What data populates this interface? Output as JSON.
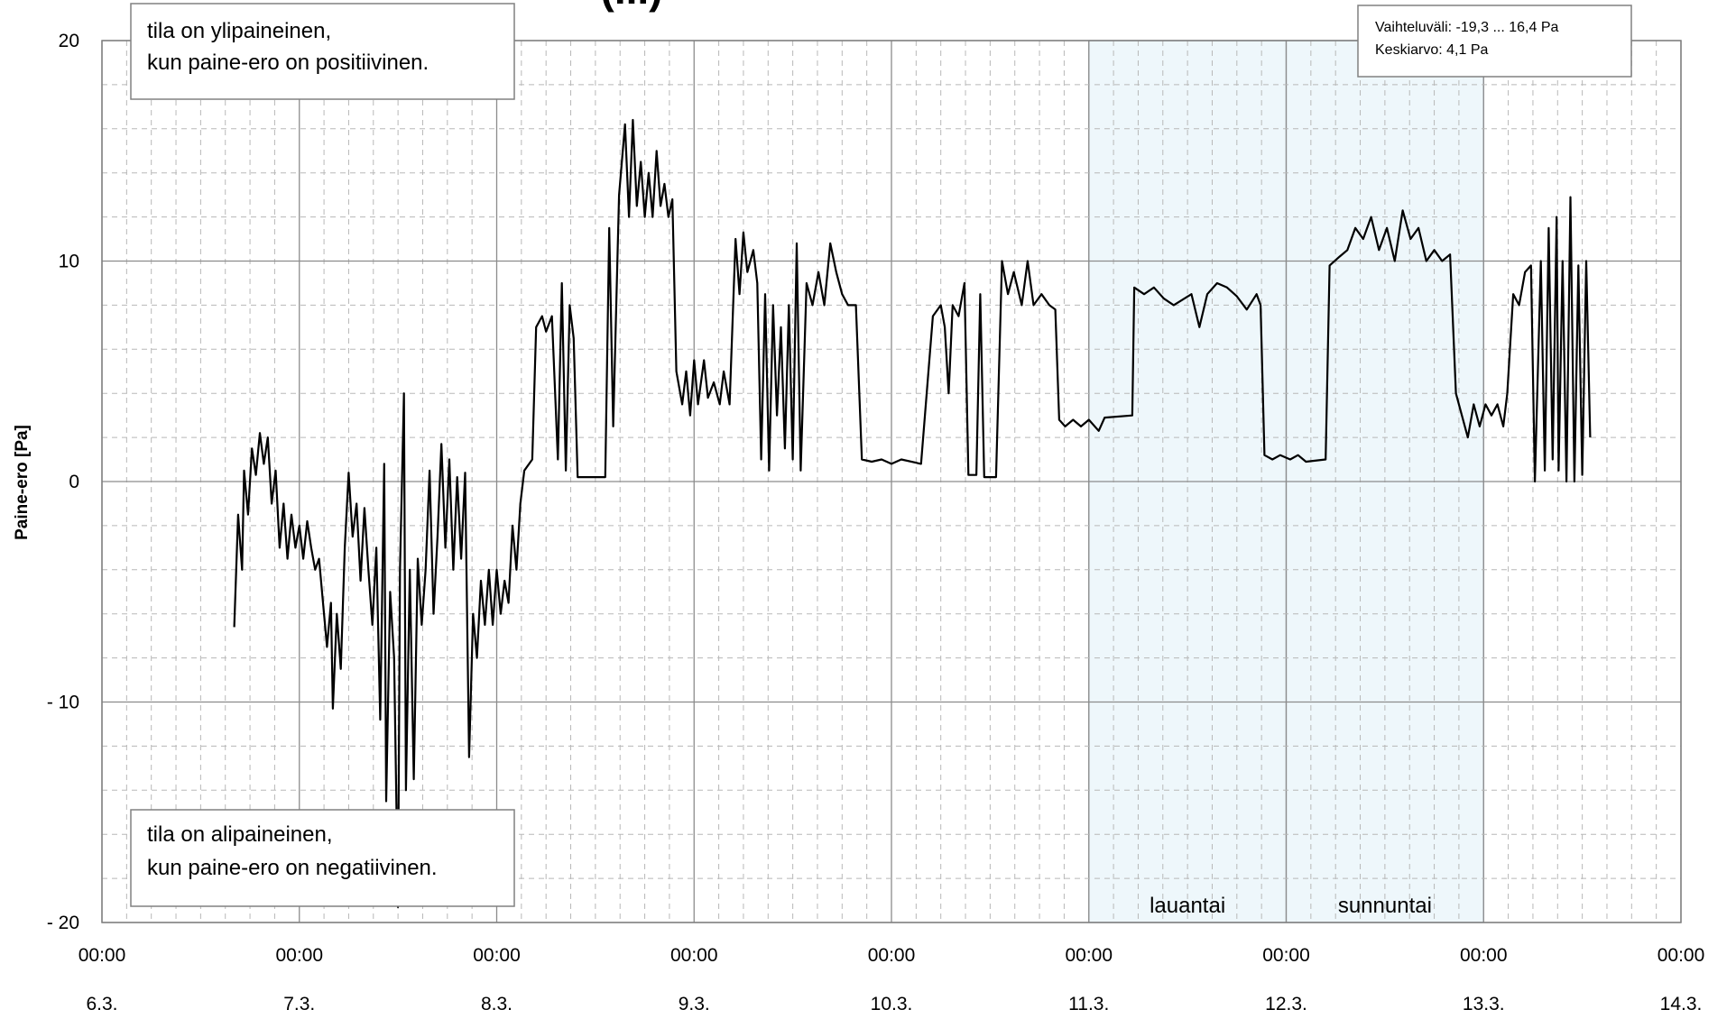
{
  "chart_data": {
    "type": "line",
    "title": "(...)",
    "ylabel": "Paine-ero [Pa]",
    "xlabel": "",
    "ylim": [
      -20,
      20
    ],
    "y_ticks": [
      "20",
      "10",
      "0",
      "- 10",
      "- 20"
    ],
    "x_ticks": [
      {
        "time": "00:00",
        "date": "6.3."
      },
      {
        "time": "00:00",
        "date": "7.3."
      },
      {
        "time": "00:00",
        "date": "8.3."
      },
      {
        "time": "00:00",
        "date": "9.3."
      },
      {
        "time": "00:00",
        "date": "10.3."
      },
      {
        "time": "00:00",
        "date": "11.3."
      },
      {
        "time": "00:00",
        "date": "12.3."
      },
      {
        "time": "00:00",
        "date": "13.3."
      },
      {
        "time": "00:00",
        "date": "14.3."
      }
    ],
    "xlim_days": [
      6,
      14
    ],
    "grid": true,
    "shaded_periods": [
      {
        "label": "lauantai",
        "start": 11,
        "end": 12
      },
      {
        "label": "sunnuntai",
        "start": 12,
        "end": 13
      }
    ],
    "annotations": {
      "top_left": [
        "tila on ylipaineinen,",
        "kun paine-ero on positiivinen."
      ],
      "bottom_left": [
        "tila on alipaineinen,",
        "kun paine-ero on negatiivinen."
      ],
      "stats": [
        "Vaihteluväli:  -19,3 ... 16,4 Pa",
        "Keskiarvo: 4,1 Pa"
      ]
    },
    "series": [
      {
        "values": [
          [
            6.67,
            -6.6
          ],
          [
            6.69,
            -1.5
          ],
          [
            6.71,
            -4.0
          ],
          [
            6.72,
            0.5
          ],
          [
            6.74,
            -1.5
          ],
          [
            6.76,
            1.5
          ],
          [
            6.78,
            0.3
          ],
          [
            6.8,
            2.2
          ],
          [
            6.82,
            0.8
          ],
          [
            6.84,
            2.0
          ],
          [
            6.86,
            -1.0
          ],
          [
            6.88,
            0.5
          ],
          [
            6.9,
            -3.0
          ],
          [
            6.92,
            -1.0
          ],
          [
            6.94,
            -3.5
          ],
          [
            6.96,
            -1.5
          ],
          [
            6.98,
            -3.0
          ],
          [
            7.0,
            -2.0
          ],
          [
            7.02,
            -3.5
          ],
          [
            7.04,
            -1.8
          ],
          [
            7.06,
            -3.0
          ],
          [
            7.08,
            -4.0
          ],
          [
            7.1,
            -3.5
          ],
          [
            7.12,
            -5.5
          ],
          [
            7.14,
            -7.5
          ],
          [
            7.16,
            -5.5
          ],
          [
            7.17,
            -10.3
          ],
          [
            7.19,
            -6.0
          ],
          [
            7.21,
            -8.5
          ],
          [
            7.23,
            -3.0
          ],
          [
            7.25,
            0.4
          ],
          [
            7.27,
            -2.5
          ],
          [
            7.29,
            -1.0
          ],
          [
            7.31,
            -4.5
          ],
          [
            7.33,
            -1.2
          ],
          [
            7.35,
            -4.0
          ],
          [
            7.37,
            -6.5
          ],
          [
            7.39,
            -3.0
          ],
          [
            7.41,
            -10.8
          ],
          [
            7.43,
            0.8
          ],
          [
            7.44,
            -14.5
          ],
          [
            7.46,
            -5.0
          ],
          [
            7.48,
            -8.0
          ],
          [
            7.5,
            -19.3
          ],
          [
            7.51,
            -4.0
          ],
          [
            7.53,
            4.0
          ],
          [
            7.54,
            -14.0
          ],
          [
            7.56,
            -4.0
          ],
          [
            7.58,
            -13.5
          ],
          [
            7.6,
            -3.5
          ],
          [
            7.62,
            -6.5
          ],
          [
            7.64,
            -4.0
          ],
          [
            7.66,
            0.5
          ],
          [
            7.68,
            -6.0
          ],
          [
            7.7,
            -2.5
          ],
          [
            7.72,
            1.7
          ],
          [
            7.74,
            -3.0
          ],
          [
            7.76,
            1.0
          ],
          [
            7.78,
            -4.0
          ],
          [
            7.8,
            0.2
          ],
          [
            7.82,
            -3.5
          ],
          [
            7.84,
            0.4
          ],
          [
            7.86,
            -12.5
          ],
          [
            7.88,
            -6.0
          ],
          [
            7.9,
            -8.0
          ],
          [
            7.92,
            -4.5
          ],
          [
            7.94,
            -6.5
          ],
          [
            7.96,
            -4.0
          ],
          [
            7.98,
            -6.5
          ],
          [
            8.0,
            -4.0
          ],
          [
            8.02,
            -6.0
          ],
          [
            8.04,
            -4.5
          ],
          [
            8.06,
            -5.5
          ],
          [
            8.08,
            -2.0
          ],
          [
            8.1,
            -4.0
          ],
          [
            8.12,
            -1.0
          ],
          [
            8.14,
            0.5
          ],
          [
            8.18,
            1.0
          ],
          [
            8.2,
            7.0
          ],
          [
            8.23,
            7.5
          ],
          [
            8.25,
            6.8
          ],
          [
            8.28,
            7.5
          ],
          [
            8.31,
            1.0
          ],
          [
            8.33,
            9.0
          ],
          [
            8.35,
            0.5
          ],
          [
            8.37,
            8.0
          ],
          [
            8.39,
            6.5
          ],
          [
            8.41,
            0.2
          ],
          [
            8.55,
            0.2
          ],
          [
            8.57,
            11.5
          ],
          [
            8.59,
            2.5
          ],
          [
            8.62,
            13.0
          ],
          [
            8.65,
            16.2
          ],
          [
            8.67,
            12.0
          ],
          [
            8.69,
            16.4
          ],
          [
            8.71,
            12.5
          ],
          [
            8.73,
            14.5
          ],
          [
            8.75,
            12.0
          ],
          [
            8.77,
            14.0
          ],
          [
            8.79,
            12.0
          ],
          [
            8.81,
            15.0
          ],
          [
            8.83,
            12.5
          ],
          [
            8.85,
            13.5
          ],
          [
            8.87,
            12.0
          ],
          [
            8.89,
            12.8
          ],
          [
            8.91,
            5.0
          ],
          [
            8.94,
            3.5
          ],
          [
            8.96,
            5.0
          ],
          [
            8.98,
            3.0
          ],
          [
            9.0,
            5.5
          ],
          [
            9.02,
            3.5
          ],
          [
            9.05,
            5.5
          ],
          [
            9.07,
            3.8
          ],
          [
            9.1,
            4.5
          ],
          [
            9.13,
            3.5
          ],
          [
            9.15,
            5.0
          ],
          [
            9.18,
            3.5
          ],
          [
            9.21,
            11.0
          ],
          [
            9.23,
            8.5
          ],
          [
            9.25,
            11.3
          ],
          [
            9.27,
            9.5
          ],
          [
            9.3,
            10.5
          ],
          [
            9.32,
            9.0
          ],
          [
            9.34,
            1.0
          ],
          [
            9.36,
            8.5
          ],
          [
            9.38,
            0.5
          ],
          [
            9.4,
            8.0
          ],
          [
            9.42,
            3.0
          ],
          [
            9.44,
            7.0
          ],
          [
            9.46,
            1.5
          ],
          [
            9.48,
            8.0
          ],
          [
            9.5,
            1.0
          ],
          [
            9.52,
            10.8
          ],
          [
            9.54,
            0.5
          ],
          [
            9.57,
            9.0
          ],
          [
            9.6,
            8.0
          ],
          [
            9.63,
            9.5
          ],
          [
            9.66,
            8.0
          ],
          [
            9.69,
            10.8
          ],
          [
            9.72,
            9.5
          ],
          [
            9.75,
            8.5
          ],
          [
            9.78,
            8.0
          ],
          [
            9.82,
            8.0
          ],
          [
            9.85,
            1.0
          ],
          [
            9.9,
            0.9
          ],
          [
            9.95,
            1.0
          ],
          [
            10.0,
            0.8
          ],
          [
            10.05,
            1.0
          ],
          [
            10.15,
            0.8
          ],
          [
            10.21,
            7.5
          ],
          [
            10.25,
            8.0
          ],
          [
            10.27,
            7.0
          ],
          [
            10.29,
            4.0
          ],
          [
            10.31,
            8.0
          ],
          [
            10.34,
            7.5
          ],
          [
            10.37,
            9.0
          ],
          [
            10.39,
            0.3
          ],
          [
            10.43,
            0.3
          ],
          [
            10.45,
            8.5
          ],
          [
            10.47,
            0.2
          ],
          [
            10.53,
            0.2
          ],
          [
            10.56,
            10.0
          ],
          [
            10.59,
            8.5
          ],
          [
            10.62,
            9.5
          ],
          [
            10.66,
            8.0
          ],
          [
            10.69,
            10.0
          ],
          [
            10.72,
            8.0
          ],
          [
            10.76,
            8.5
          ],
          [
            10.8,
            8.0
          ],
          [
            10.83,
            7.8
          ],
          [
            10.85,
            2.8
          ],
          [
            10.88,
            2.5
          ],
          [
            10.92,
            2.8
          ],
          [
            10.96,
            2.5
          ],
          [
            11.0,
            2.8
          ],
          [
            11.05,
            2.3
          ],
          [
            11.08,
            2.9
          ],
          [
            11.22,
            3.0
          ],
          [
            11.23,
            8.8
          ],
          [
            11.28,
            8.5
          ],
          [
            11.33,
            8.8
          ],
          [
            11.38,
            8.3
          ],
          [
            11.43,
            8.0
          ],
          [
            11.52,
            8.5
          ],
          [
            11.56,
            7.0
          ],
          [
            11.6,
            8.5
          ],
          [
            11.65,
            9.0
          ],
          [
            11.7,
            8.8
          ],
          [
            11.75,
            8.4
          ],
          [
            11.8,
            7.8
          ],
          [
            11.85,
            8.5
          ],
          [
            11.87,
            8.0
          ],
          [
            11.89,
            1.2
          ],
          [
            11.93,
            1.0
          ],
          [
            11.97,
            1.2
          ],
          [
            12.02,
            1.0
          ],
          [
            12.06,
            1.2
          ],
          [
            12.1,
            0.9
          ],
          [
            12.2,
            1.0
          ],
          [
            12.22,
            9.8
          ],
          [
            12.27,
            10.2
          ],
          [
            12.31,
            10.5
          ],
          [
            12.35,
            11.5
          ],
          [
            12.39,
            11.0
          ],
          [
            12.43,
            12.0
          ],
          [
            12.47,
            10.5
          ],
          [
            12.51,
            11.5
          ],
          [
            12.55,
            10.0
          ],
          [
            12.59,
            12.3
          ],
          [
            12.63,
            11.0
          ],
          [
            12.67,
            11.5
          ],
          [
            12.71,
            10.0
          ],
          [
            12.75,
            10.5
          ],
          [
            12.79,
            10.0
          ],
          [
            12.83,
            10.3
          ],
          [
            12.86,
            4.0
          ],
          [
            12.89,
            3.0
          ],
          [
            12.92,
            2.0
          ],
          [
            12.95,
            3.5
          ],
          [
            12.98,
            2.5
          ],
          [
            13.01,
            3.5
          ],
          [
            13.04,
            3.0
          ],
          [
            13.07,
            3.5
          ],
          [
            13.1,
            2.5
          ],
          [
            13.12,
            4.0
          ],
          [
            13.15,
            8.5
          ],
          [
            13.18,
            8.0
          ],
          [
            13.21,
            9.5
          ],
          [
            13.24,
            9.8
          ],
          [
            13.26,
            0.0
          ],
          [
            13.29,
            10.0
          ],
          [
            13.31,
            0.5
          ],
          [
            13.33,
            11.5
          ],
          [
            13.35,
            1.0
          ],
          [
            13.37,
            12.0
          ],
          [
            13.38,
            0.5
          ],
          [
            13.4,
            10.0
          ],
          [
            13.42,
            0.0
          ],
          [
            13.44,
            12.9
          ],
          [
            13.46,
            0.0
          ],
          [
            13.48,
            9.8
          ],
          [
            13.5,
            0.3
          ],
          [
            13.52,
            10.0
          ],
          [
            13.54,
            2.0
          ]
        ]
      }
    ]
  }
}
